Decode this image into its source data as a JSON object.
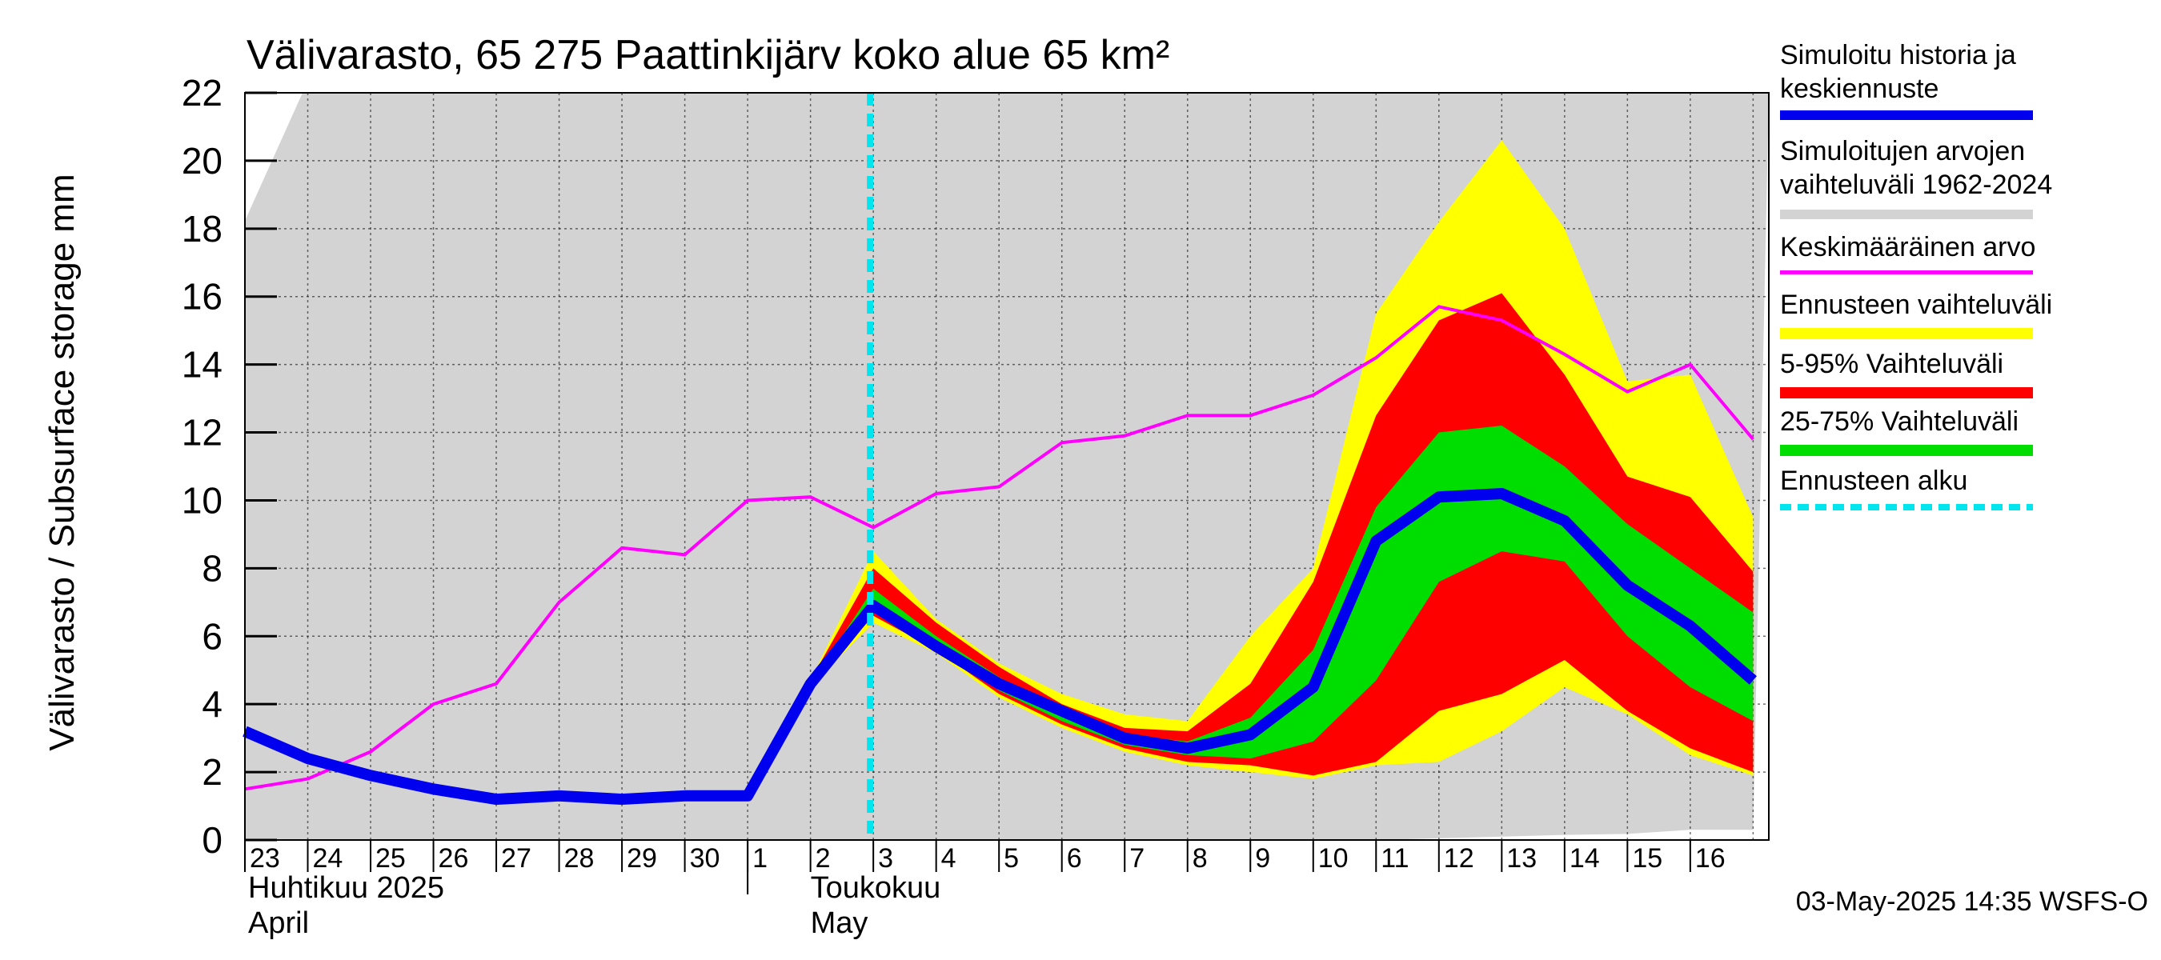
{
  "chart_data": {
    "type": "area",
    "title": "Välivarasto, 65 275 Paattinkijärv koko alue 65 km²",
    "ylabel": "Välivarasto / Subsurface storage  mm",
    "ylim": [
      0,
      22
    ],
    "yticks": [
      0,
      2,
      4,
      6,
      8,
      10,
      12,
      14,
      16,
      18,
      20,
      22
    ],
    "x_day_labels": [
      "23",
      "24",
      "25",
      "26",
      "27",
      "28",
      "29",
      "30",
      "1",
      "2",
      "3",
      "4",
      "5",
      "6",
      "7",
      "8",
      "9",
      "10",
      "11",
      "12",
      "13",
      "14",
      "15",
      "16"
    ],
    "month_labels": [
      {
        "fi": "Huhtikuu  2025",
        "en": "April"
      },
      {
        "fi": "Toukokuu",
        "en": "May"
      }
    ],
    "grid": true,
    "forecast_start_index": 10,
    "history_range": {
      "name": "Simuloitujen arvojen vaihteluväli 1962-2024",
      "color": "#d3d3d3",
      "note_upper_above_ylim": true,
      "lower": [
        0,
        0,
        0,
        0,
        0,
        0,
        0,
        0,
        0,
        0,
        0,
        0,
        0,
        0,
        0,
        0,
        0,
        0,
        0,
        0.05,
        0.1,
        0.15,
        0.18,
        0.3,
        0.3
      ]
    },
    "forecast_range": {
      "name": "Ennusteen vaihteluväli",
      "color": "#ffff00",
      "x": [
        9,
        10,
        11,
        12,
        13,
        14,
        15,
        16,
        17,
        18,
        19,
        20,
        21,
        22,
        23,
        24
      ],
      "upper": [
        4.7,
        8.5,
        6.5,
        5.2,
        4.3,
        3.7,
        3.5,
        6.0,
        8.0,
        15.5,
        18.2,
        20.6,
        18.0,
        13.5,
        13.7,
        9.5
      ],
      "lower": [
        4.5,
        6.4,
        5.5,
        4.2,
        3.3,
        2.6,
        2.2,
        2.0,
        1.8,
        2.2,
        2.3,
        3.2,
        4.5,
        3.7,
        2.5,
        1.9
      ]
    },
    "range_5_95": {
      "name": "5-95% Vaihteluväli",
      "color": "#ff0000",
      "x": [
        9,
        10,
        11,
        12,
        13,
        14,
        15,
        16,
        17,
        18,
        19,
        20,
        21,
        22,
        23,
        24
      ],
      "upper": [
        4.7,
        8.0,
        6.4,
        5.1,
        4.0,
        3.3,
        3.2,
        4.6,
        7.6,
        12.5,
        15.3,
        16.1,
        13.7,
        10.7,
        10.1,
        7.9
      ],
      "lower": [
        4.5,
        6.6,
        5.6,
        4.3,
        3.4,
        2.7,
        2.3,
        2.2,
        1.9,
        2.3,
        3.8,
        4.3,
        5.3,
        3.8,
        2.7,
        2.0
      ]
    },
    "range_25_75": {
      "name": "25-75% Vaihteluväli",
      "color": "#00dd00",
      "x": [
        9,
        10,
        11,
        12,
        13,
        14,
        15,
        16,
        17,
        18,
        19,
        20,
        21,
        22,
        23,
        24
      ],
      "upper": [
        4.6,
        7.4,
        6.0,
        4.8,
        3.7,
        3.1,
        2.9,
        3.6,
        5.6,
        9.8,
        12.0,
        12.2,
        11.0,
        9.3,
        8.0,
        6.7
      ],
      "lower": [
        4.5,
        6.7,
        5.7,
        4.4,
        3.5,
        2.8,
        2.5,
        2.4,
        2.9,
        4.7,
        7.6,
        8.5,
        8.2,
        6.0,
        4.5,
        3.5
      ]
    },
    "series": [
      {
        "name": "Simuloitu historia ja keskiennuste",
        "color": "#0000ee",
        "x": [
          0,
          1,
          2,
          3,
          4,
          5,
          6,
          7,
          8,
          9,
          10,
          11,
          12,
          13,
          14,
          15,
          16,
          17,
          18,
          19,
          20,
          21,
          22,
          23,
          24
        ],
        "values": [
          3.2,
          2.4,
          1.9,
          1.5,
          1.2,
          1.3,
          1.2,
          1.3,
          1.3,
          4.6,
          6.9,
          5.7,
          4.6,
          3.8,
          3.0,
          2.7,
          3.1,
          4.5,
          8.8,
          10.1,
          10.2,
          9.4,
          7.5,
          6.3,
          4.7
        ]
      },
      {
        "name": "Keskimääräinen arvo",
        "color": "#ff00ff",
        "x": [
          0,
          1,
          2,
          3,
          4,
          5,
          6,
          7,
          8,
          9,
          10,
          11,
          12,
          13,
          14,
          15,
          16,
          17,
          18,
          19,
          20,
          21,
          22,
          23,
          24
        ],
        "values": [
          1.5,
          1.8,
          2.6,
          4.0,
          4.6,
          7.0,
          8.6,
          8.4,
          10.0,
          10.1,
          9.2,
          10.2,
          10.4,
          11.7,
          11.9,
          12.5,
          12.5,
          13.1,
          14.2,
          15.7,
          15.3,
          14.3,
          13.2,
          14.0,
          11.8
        ]
      }
    ],
    "forecast_start_label": "Ennusteen alku",
    "forecast_start_color": "#00e5ee"
  },
  "legend": {
    "items": [
      {
        "label": "Simuloitu historia ja\nkeskiennuste",
        "color": "#0000ee"
      },
      {
        "label": "Simuloitujen arvojen\nvaihteluväli 1962-2024",
        "color": "#d3d3d3"
      },
      {
        "label": "Keskimääräinen arvo",
        "color": "#ff00ff"
      },
      {
        "label": "Ennusteen vaihteluväli",
        "color": "#ffff00"
      },
      {
        "label": "5-95% Vaihteluväli",
        "color": "#ff0000"
      },
      {
        "label": "25-75% Vaihteluväli",
        "color": "#00dd00"
      },
      {
        "label": "Ennusteen alku",
        "color": "#00e5ee"
      }
    ]
  },
  "footer": {
    "timestamp": "03-May-2025 14:35 WSFS-O"
  }
}
